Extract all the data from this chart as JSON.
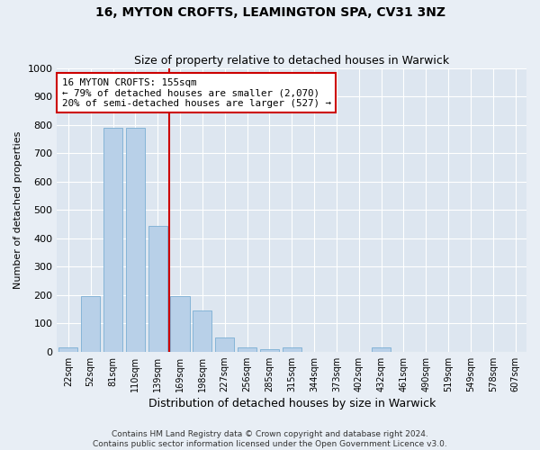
{
  "title1": "16, MYTON CROFTS, LEAMINGTON SPA, CV31 3NZ",
  "title2": "Size of property relative to detached houses in Warwick",
  "xlabel": "Distribution of detached houses by size in Warwick",
  "ylabel": "Number of detached properties",
  "categories": [
    "22sqm",
    "52sqm",
    "81sqm",
    "110sqm",
    "139sqm",
    "169sqm",
    "198sqm",
    "227sqm",
    "256sqm",
    "285sqm",
    "315sqm",
    "344sqm",
    "373sqm",
    "402sqm",
    "432sqm",
    "461sqm",
    "490sqm",
    "519sqm",
    "549sqm",
    "578sqm",
    "607sqm"
  ],
  "values": [
    15,
    195,
    790,
    790,
    445,
    195,
    145,
    50,
    15,
    10,
    15,
    0,
    0,
    0,
    15,
    0,
    0,
    0,
    0,
    0,
    0
  ],
  "bar_color": "#b8d0e8",
  "bar_edge_color": "#7aaed4",
  "vline_x": 4.5,
  "vline_color": "#cc0000",
  "annotation_text": "16 MYTON CROFTS: 155sqm\n← 79% of detached houses are smaller (2,070)\n20% of semi-detached houses are larger (527) →",
  "annotation_box_color": "#cc0000",
  "ylim": [
    0,
    1000
  ],
  "yticks": [
    0,
    100,
    200,
    300,
    400,
    500,
    600,
    700,
    800,
    900,
    1000
  ],
  "background_color": "#dde6f0",
  "fig_background_color": "#e8eef5",
  "grid_color": "#ffffff",
  "footer": "Contains HM Land Registry data © Crown copyright and database right 2024.\nContains public sector information licensed under the Open Government Licence v3.0."
}
